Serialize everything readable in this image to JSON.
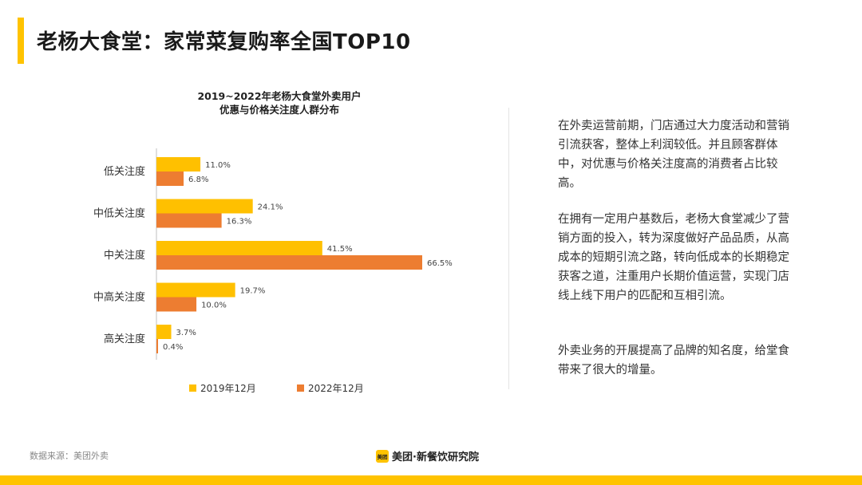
{
  "page": {
    "title": "老杨大食堂：家常菜复购率全国TOP10",
    "source": "数据来源：美团外卖",
    "logo_mark": "美团",
    "logo_text": "美团·新餐饮研究院"
  },
  "colors": {
    "accent": "#FFC300",
    "series_2019": "#FFC000",
    "series_2022": "#ED7D31",
    "divider": "#e4e4e4"
  },
  "chart_data": {
    "type": "bar",
    "orientation": "horizontal",
    "title_line1": "2019~2022年老杨大食堂外卖用户",
    "title_line2": "优惠与价格关注度人群分布",
    "categories": [
      "低关注度",
      "中低关注度",
      "中关注度",
      "中高关注度",
      "高关注度"
    ],
    "series": [
      {
        "name": "2019年12月",
        "values": [
          11.0,
          24.1,
          41.5,
          19.7,
          3.7
        ],
        "labels": [
          "11.0%",
          "24.1%",
          "41.5%",
          "19.7%",
          "3.7%"
        ],
        "color": "#FFC000"
      },
      {
        "name": "2022年12月",
        "values": [
          6.8,
          16.3,
          66.5,
          10.0,
          0.4
        ],
        "labels": [
          "6.8%",
          "16.3%",
          "66.5%",
          "10.0%",
          "0.4%"
        ],
        "color": "#ED7D31"
      }
    ],
    "xlim": [
      0,
      70
    ],
    "legend_position": "bottom",
    "grid": false
  },
  "text": {
    "paragraphs": [
      "在外卖运营前期，门店通过大力度活动和营销引流获客，整体上利润较低。并且顾客群体中，对优惠与价格关注度高的消费者占比较高。",
      "在拥有一定用户基数后，老杨大食堂减少了营销方面的投入，转为深度做好产品品质，从高成本的短期引流之路，转向低成本的长期稳定获客之道，注重用户长期价值运营，实现门店线上线下用户的匹配和互相引流。",
      "外卖业务的开展提高了品牌的知名度，给堂食带来了很大的增量。"
    ]
  }
}
